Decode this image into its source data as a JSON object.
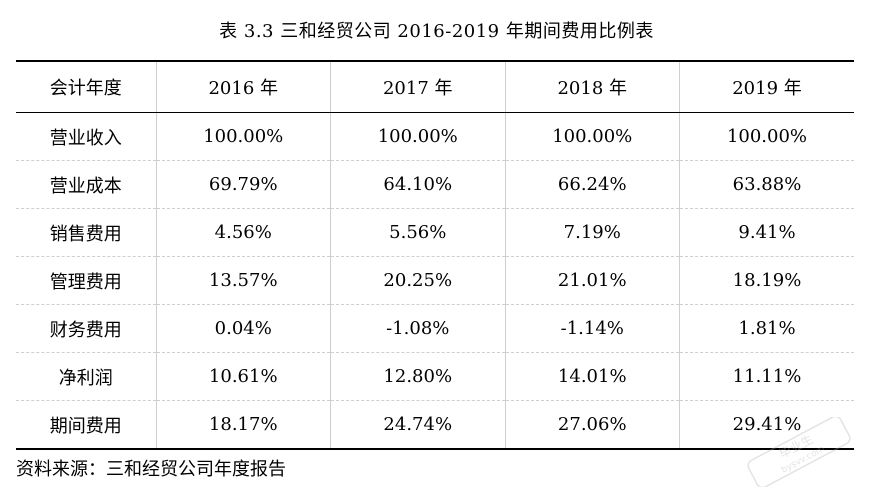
{
  "caption": "表 3.3 三和经贸公司 2016-2019 年期间费用比例表",
  "table": {
    "header": [
      "会计年度",
      "2016 年",
      "2017 年",
      "2018 年",
      "2019 年"
    ],
    "rows": [
      {
        "label": "营业收入",
        "values": [
          "100.00%",
          "100.00%",
          "100.00%",
          "100.00%"
        ]
      },
      {
        "label": "营业成本",
        "values": [
          "69.79%",
          "64.10%",
          "66.24%",
          "63.88%"
        ]
      },
      {
        "label": "销售费用",
        "values": [
          "4.56%",
          "5.56%",
          "7.19%",
          "9.41%"
        ]
      },
      {
        "label": "管理费用",
        "values": [
          "13.57%",
          "20.25%",
          "21.01%",
          "18.19%"
        ]
      },
      {
        "label": "财务费用",
        "values": [
          "0.04%",
          "-1.08%",
          "-1.14%",
          "1.81%"
        ]
      },
      {
        "label": "净利润",
        "values": [
          "10.61%",
          "12.80%",
          "14.01%",
          "11.11%"
        ]
      },
      {
        "label": "期间费用",
        "values": [
          "18.17%",
          "24.74%",
          "27.06%",
          "29.41%"
        ]
      }
    ]
  },
  "source_note": "资料来源：三和经贸公司年度报告",
  "watermark": {
    "line1": "毕业生",
    "line2": "bysvv.com",
    "color": "#b0b0b0"
  }
}
